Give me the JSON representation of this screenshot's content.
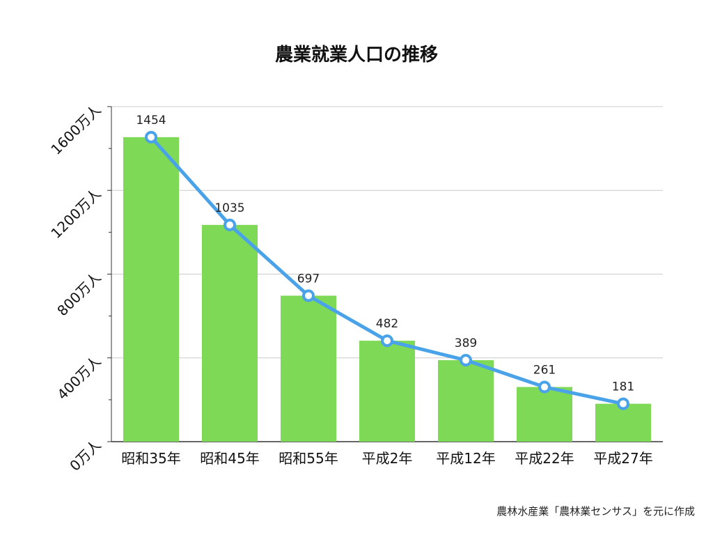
{
  "title": "農業就業人口の推移",
  "source": "農林水産業「農林業センサス」を元に作成",
  "chart_data": {
    "type": "bar",
    "title": "農業就業人口の推移",
    "categories": [
      "昭和35年",
      "昭和45年",
      "昭和55年",
      "平成2年",
      "平成12年",
      "平成22年",
      "平成27年"
    ],
    "values": [
      1454,
      1035,
      697,
      482,
      389,
      261,
      181
    ],
    "overlay_line": true,
    "ylim": [
      0,
      1600
    ],
    "y_ticks": [
      0,
      400,
      800,
      1200,
      1600
    ],
    "y_tick_labels": [
      "0万人",
      "400万人",
      "800万人",
      "1200万人",
      "1600万人"
    ],
    "grid": true,
    "colors": {
      "bar": "#7ed957",
      "line": "#4aa3e8",
      "grid": "#cccccc",
      "axis": "#333333"
    }
  }
}
